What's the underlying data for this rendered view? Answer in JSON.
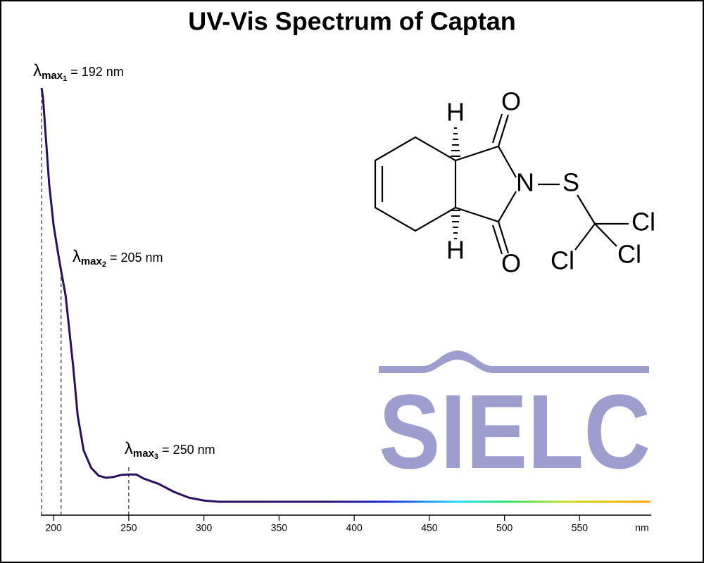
{
  "chart_data": {
    "type": "line",
    "title": "UV-Vis Spectrum of Captan",
    "x_label": "nm",
    "x": [
      192,
      193,
      195,
      197,
      200,
      203,
      205,
      208,
      210,
      213,
      216,
      220,
      225,
      230,
      235,
      240,
      245,
      250,
      255,
      260,
      270,
      280,
      290,
      300,
      310,
      350,
      400,
      450,
      500,
      550,
      597
    ],
    "values": [
      1.0,
      0.974,
      0.872,
      0.77,
      0.668,
      0.6,
      0.558,
      0.498,
      0.43,
      0.328,
      0.209,
      0.124,
      0.082,
      0.063,
      0.058,
      0.06,
      0.065,
      0.066,
      0.066,
      0.056,
      0.043,
      0.024,
      0.01,
      0.003,
      0,
      0,
      0,
      0,
      0,
      0,
      0
    ],
    "color_stops": [
      {
        "x": 192,
        "color": "#2b0f5c"
      },
      {
        "x": 380,
        "color": "#2b0f6a"
      },
      {
        "x": 420,
        "color": "#1a2ad8"
      },
      {
        "x": 470,
        "color": "#22e0ff"
      },
      {
        "x": 500,
        "color": "#22e06a"
      },
      {
        "x": 540,
        "color": "#c8e020"
      },
      {
        "x": 597,
        "color": "#ffa000"
      }
    ],
    "xlim": [
      191.5,
      597.6
    ],
    "ylim": [
      0,
      1
    ],
    "xticks": [
      200,
      250,
      300,
      350,
      400,
      450,
      500,
      550
    ],
    "annotations": [
      {
        "symbol": "λ",
        "subscript": "max",
        "index": "1",
        "text": "= 192 nm",
        "x": 192
      },
      {
        "symbol": "λ",
        "subscript": "max",
        "index": "2",
        "text": "= 205 nm",
        "x": 205
      },
      {
        "symbol": "λ",
        "subscript": "max",
        "index": "3",
        "text": "= 250 nm",
        "x": 250
      }
    ]
  },
  "structure": {
    "atoms": [
      "H",
      "H",
      "O",
      "O",
      "N",
      "S",
      "Cl",
      "Cl",
      "Cl"
    ]
  },
  "logo": "SIELC"
}
